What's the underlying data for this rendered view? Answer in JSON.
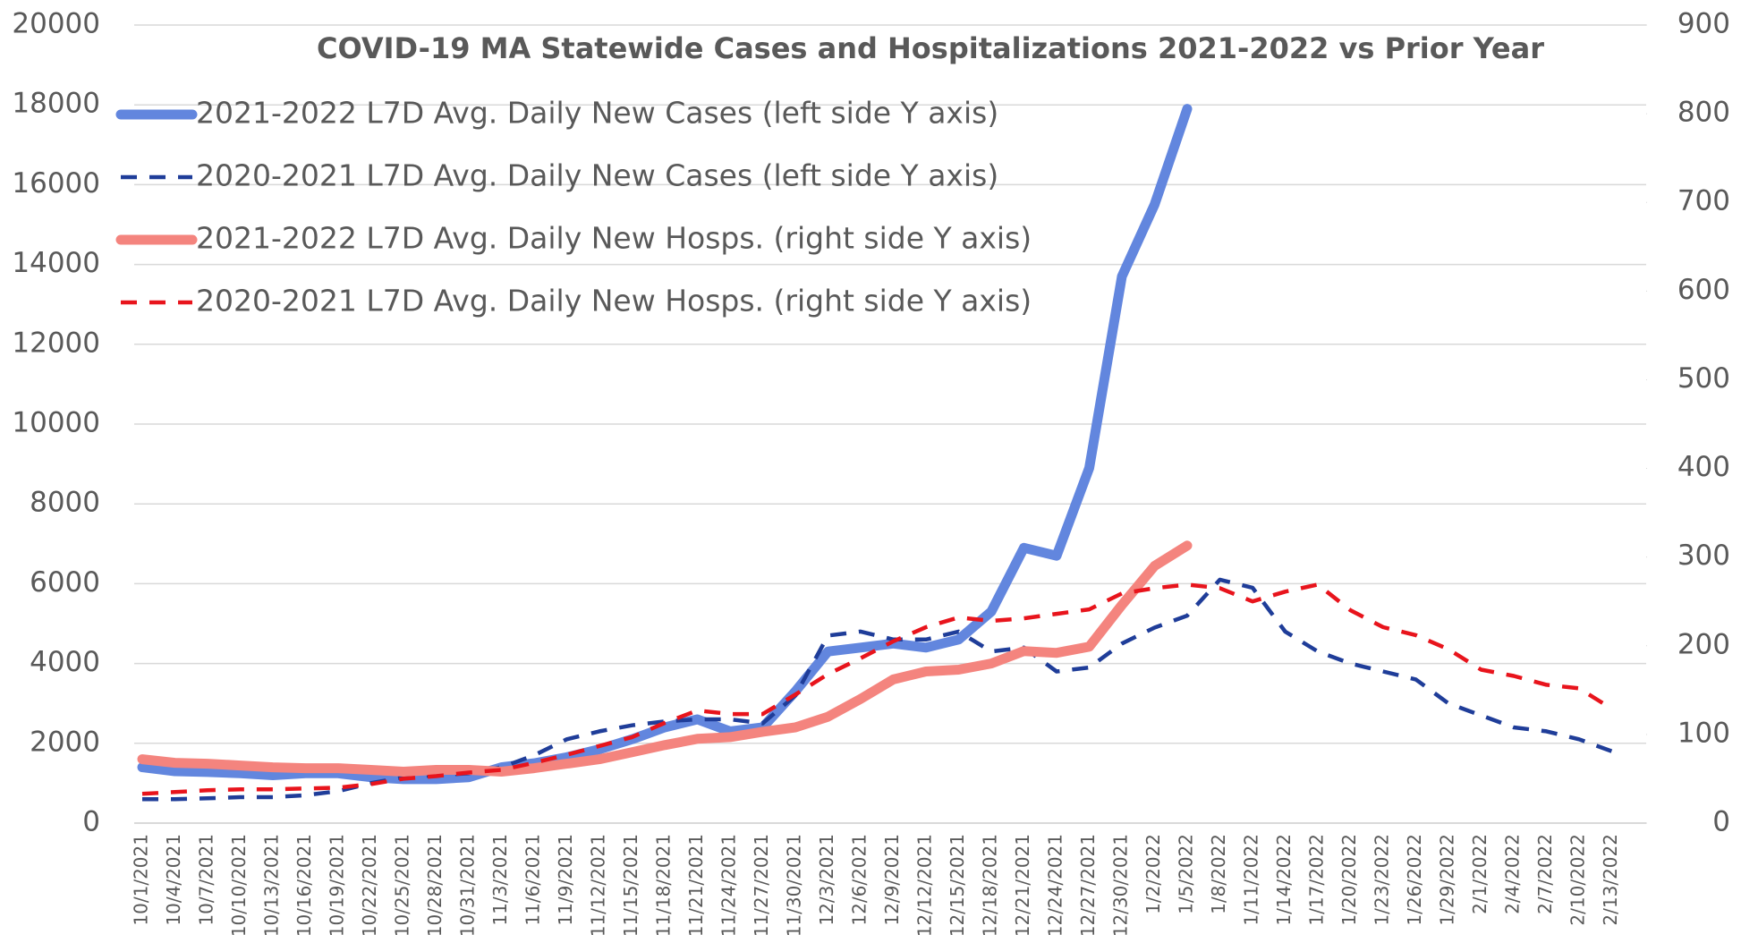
{
  "chart_data": {
    "type": "line",
    "title": "COVID-19 MA Statewide Cases and Hospitalizations 2021-2022 vs Prior Year",
    "categories": [
      "10/1/2021",
      "10/4/2021",
      "10/7/2021",
      "10/10/2021",
      "10/13/2021",
      "10/16/2021",
      "10/19/2021",
      "10/22/2021",
      "10/25/2021",
      "10/28/2021",
      "10/31/2021",
      "11/3/2021",
      "11/6/2021",
      "11/9/2021",
      "11/12/2021",
      "11/15/2021",
      "11/18/2021",
      "11/21/2021",
      "11/24/2021",
      "11/27/2021",
      "11/30/2021",
      "12/3/2021",
      "12/6/2021",
      "12/9/2021",
      "12/12/2021",
      "12/15/2021",
      "12/18/2021",
      "12/21/2021",
      "12/24/2021",
      "12/27/2021",
      "12/30/2021",
      "1/2/2022",
      "1/5/2022",
      "1/8/2022",
      "1/11/2022",
      "1/14/2022",
      "1/17/2022",
      "1/20/2022",
      "1/23/2022",
      "1/26/2022",
      "1/29/2022",
      "2/1/2022",
      "2/4/2022",
      "2/7/2022",
      "2/10/2022",
      "2/13/2022"
    ],
    "series": [
      {
        "name": "2021-2022 L7D Avg. Daily New Cases (left side Y axis)",
        "color": "#6286de",
        "style": "solid",
        "axis": "y",
        "values": [
          1400,
          1300,
          1280,
          1250,
          1200,
          1250,
          1250,
          1150,
          1100,
          1100,
          1150,
          1400,
          1500,
          1650,
          1850,
          2100,
          2400,
          2600,
          2300,
          2400,
          3300,
          4300,
          4400,
          4500,
          4400,
          4600,
          5300,
          6900,
          6700,
          8900,
          13700,
          15500,
          17900,
          null,
          null,
          null,
          null,
          null,
          null,
          null,
          null,
          null,
          null,
          null,
          null,
          null
        ]
      },
      {
        "name": "2020-2021 L7D Avg. Daily New Cases (left side Y axis)",
        "color": "#1f3d99",
        "style": "dashed",
        "axis": "y",
        "values": [
          600,
          600,
          620,
          650,
          650,
          700,
          800,
          1000,
          1150,
          1200,
          1250,
          1400,
          1700,
          2100,
          2300,
          2450,
          2550,
          2600,
          2600,
          2500,
          3200,
          4700,
          4800,
          4600,
          4600,
          4800,
          4300,
          4400,
          3800,
          3900,
          4500,
          4900,
          5200,
          6100,
          5900,
          4800,
          4300,
          4000,
          3800,
          3600,
          3000,
          2700,
          2400,
          2300,
          2100,
          1800
        ]
      },
      {
        "name": "2021-2022 L7D Avg. Daily New Hosps. (right side Y axis)",
        "color": "#f4847e",
        "style": "solid",
        "axis": "y2",
        "values": [
          72,
          68,
          67,
          65,
          63,
          62,
          62,
          60,
          58,
          60,
          60,
          58,
          62,
          67,
          72,
          80,
          88,
          95,
          97,
          103,
          108,
          120,
          140,
          162,
          171,
          173,
          180,
          194,
          192,
          199,
          246,
          290,
          313,
          null,
          null,
          null,
          null,
          null,
          null,
          null,
          null,
          null,
          null,
          null,
          null,
          null
        ]
      },
      {
        "name": "2020-2021 L7D Avg. Daily New Hosps. (right side Y axis)",
        "color": "#e8141c",
        "style": "dashed",
        "axis": "y2",
        "values": [
          33,
          35,
          37,
          38,
          38,
          39,
          40,
          44,
          50,
          53,
          57,
          60,
          68,
          77,
          87,
          97,
          113,
          127,
          123,
          123,
          145,
          168,
          186,
          205,
          221,
          232,
          228,
          231,
          236,
          241,
          259,
          265,
          269,
          265,
          250,
          261,
          269,
          240,
          221,
          212,
          196,
          173,
          166,
          156,
          152,
          129
        ]
      }
    ],
    "ylim": [
      0,
      20000
    ],
    "yticks": [
      0,
      2000,
      4000,
      6000,
      8000,
      10000,
      12000,
      14000,
      16000,
      18000,
      20000
    ],
    "y2lim": [
      0,
      900
    ],
    "y2ticks": [
      0,
      100,
      200,
      300,
      400,
      500,
      600,
      700,
      800,
      900
    ],
    "grid": true,
    "legend": "upper-left"
  }
}
